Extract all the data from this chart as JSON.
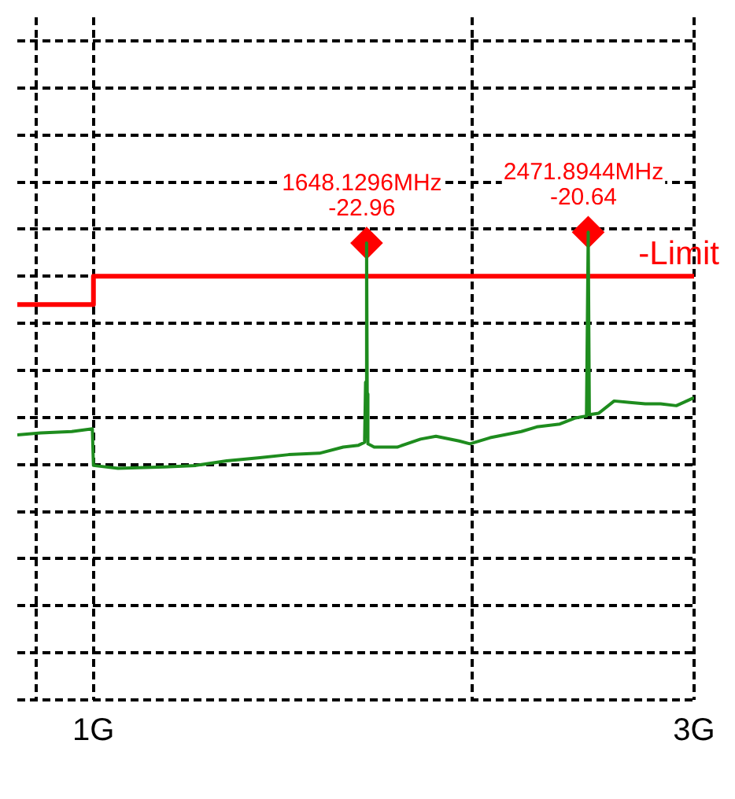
{
  "chart_data": {
    "type": "line",
    "log": "x",
    "xlim": [
      0.87,
      3
    ],
    "ylim": [
      -120,
      25
    ],
    "xticks": [
      {
        "value": 0.9,
        "label": null
      },
      {
        "value": 1,
        "label": "1G"
      },
      {
        "value": 2,
        "label": null
      },
      {
        "value": 3,
        "label": "3G"
      }
    ],
    "yticks": [
      {
        "value": -120,
        "label": null
      },
      {
        "value": -110,
        "label": null
      },
      {
        "value": -100,
        "label": null
      },
      {
        "value": -90,
        "label": null
      },
      {
        "value": -80,
        "label": null
      },
      {
        "value": -70,
        "label": null
      },
      {
        "value": -60,
        "label": null
      },
      {
        "value": -50,
        "label": null
      },
      {
        "value": -40,
        "label": null
      },
      {
        "value": -30,
        "label": null
      },
      {
        "value": -20,
        "label": null
      },
      {
        "value": -10,
        "label": null
      },
      {
        "value": 0,
        "label": null
      },
      {
        "value": 10,
        "label": null
      },
      {
        "value": 20,
        "label": null
      }
    ],
    "grid": true,
    "tick_labels": "x",
    "marker": "none",
    "series": [
      {
        "type": "line",
        "color": "#1e8c1e",
        "x": [
          0.87,
          0.908,
          0.961,
          0.998,
          1,
          1.046,
          1.139,
          1.206,
          1.276,
          1.351,
          1.429,
          1.512,
          1.579,
          1.624,
          1.642,
          1.645,
          1.6481296,
          1.65,
          1.652,
          1.671,
          1.743,
          1.819,
          1.871,
          1.952,
          1.991,
          2.066,
          2.187,
          2.25,
          2.347,
          2.415,
          2.464,
          2.4718944,
          2.477,
          2.52,
          2.592,
          2.667,
          2.744,
          2.822,
          2.904,
          3
        ],
        "values": [
          -63.7,
          -63.3,
          -63,
          -62.4,
          -70.2,
          -70.8,
          -70.5,
          -70.2,
          -69.2,
          -68.6,
          -67.9,
          -67.6,
          -66.3,
          -65.9,
          -65.3,
          -52.5,
          -22.96,
          -55,
          -65.6,
          -66.3,
          -66.3,
          -64.6,
          -64,
          -65,
          -65.6,
          -64.3,
          -63,
          -62,
          -61.4,
          -60.1,
          -59.7,
          -20.64,
          -59.4,
          -59.1,
          -56.5,
          -56.8,
          -57.1,
          -57.1,
          -57.5,
          -55.8
        ]
      },
      {
        "type": "step",
        "name": "-Limit",
        "color": "#ff0000",
        "x": [
          0.87,
          1,
          3
        ],
        "values": [
          -36,
          -30,
          -30
        ]
      },
      {
        "type": "scatter",
        "marker": "diamond",
        "color": "#ff0000",
        "x": [
          1.6481296,
          2.4718944
        ],
        "values": [
          -22.96,
          -20.64
        ],
        "value_labels": [
          "1648.1296MHz\n-22.96",
          "2471.8944MHz\n-20.64"
        ]
      }
    ]
  }
}
